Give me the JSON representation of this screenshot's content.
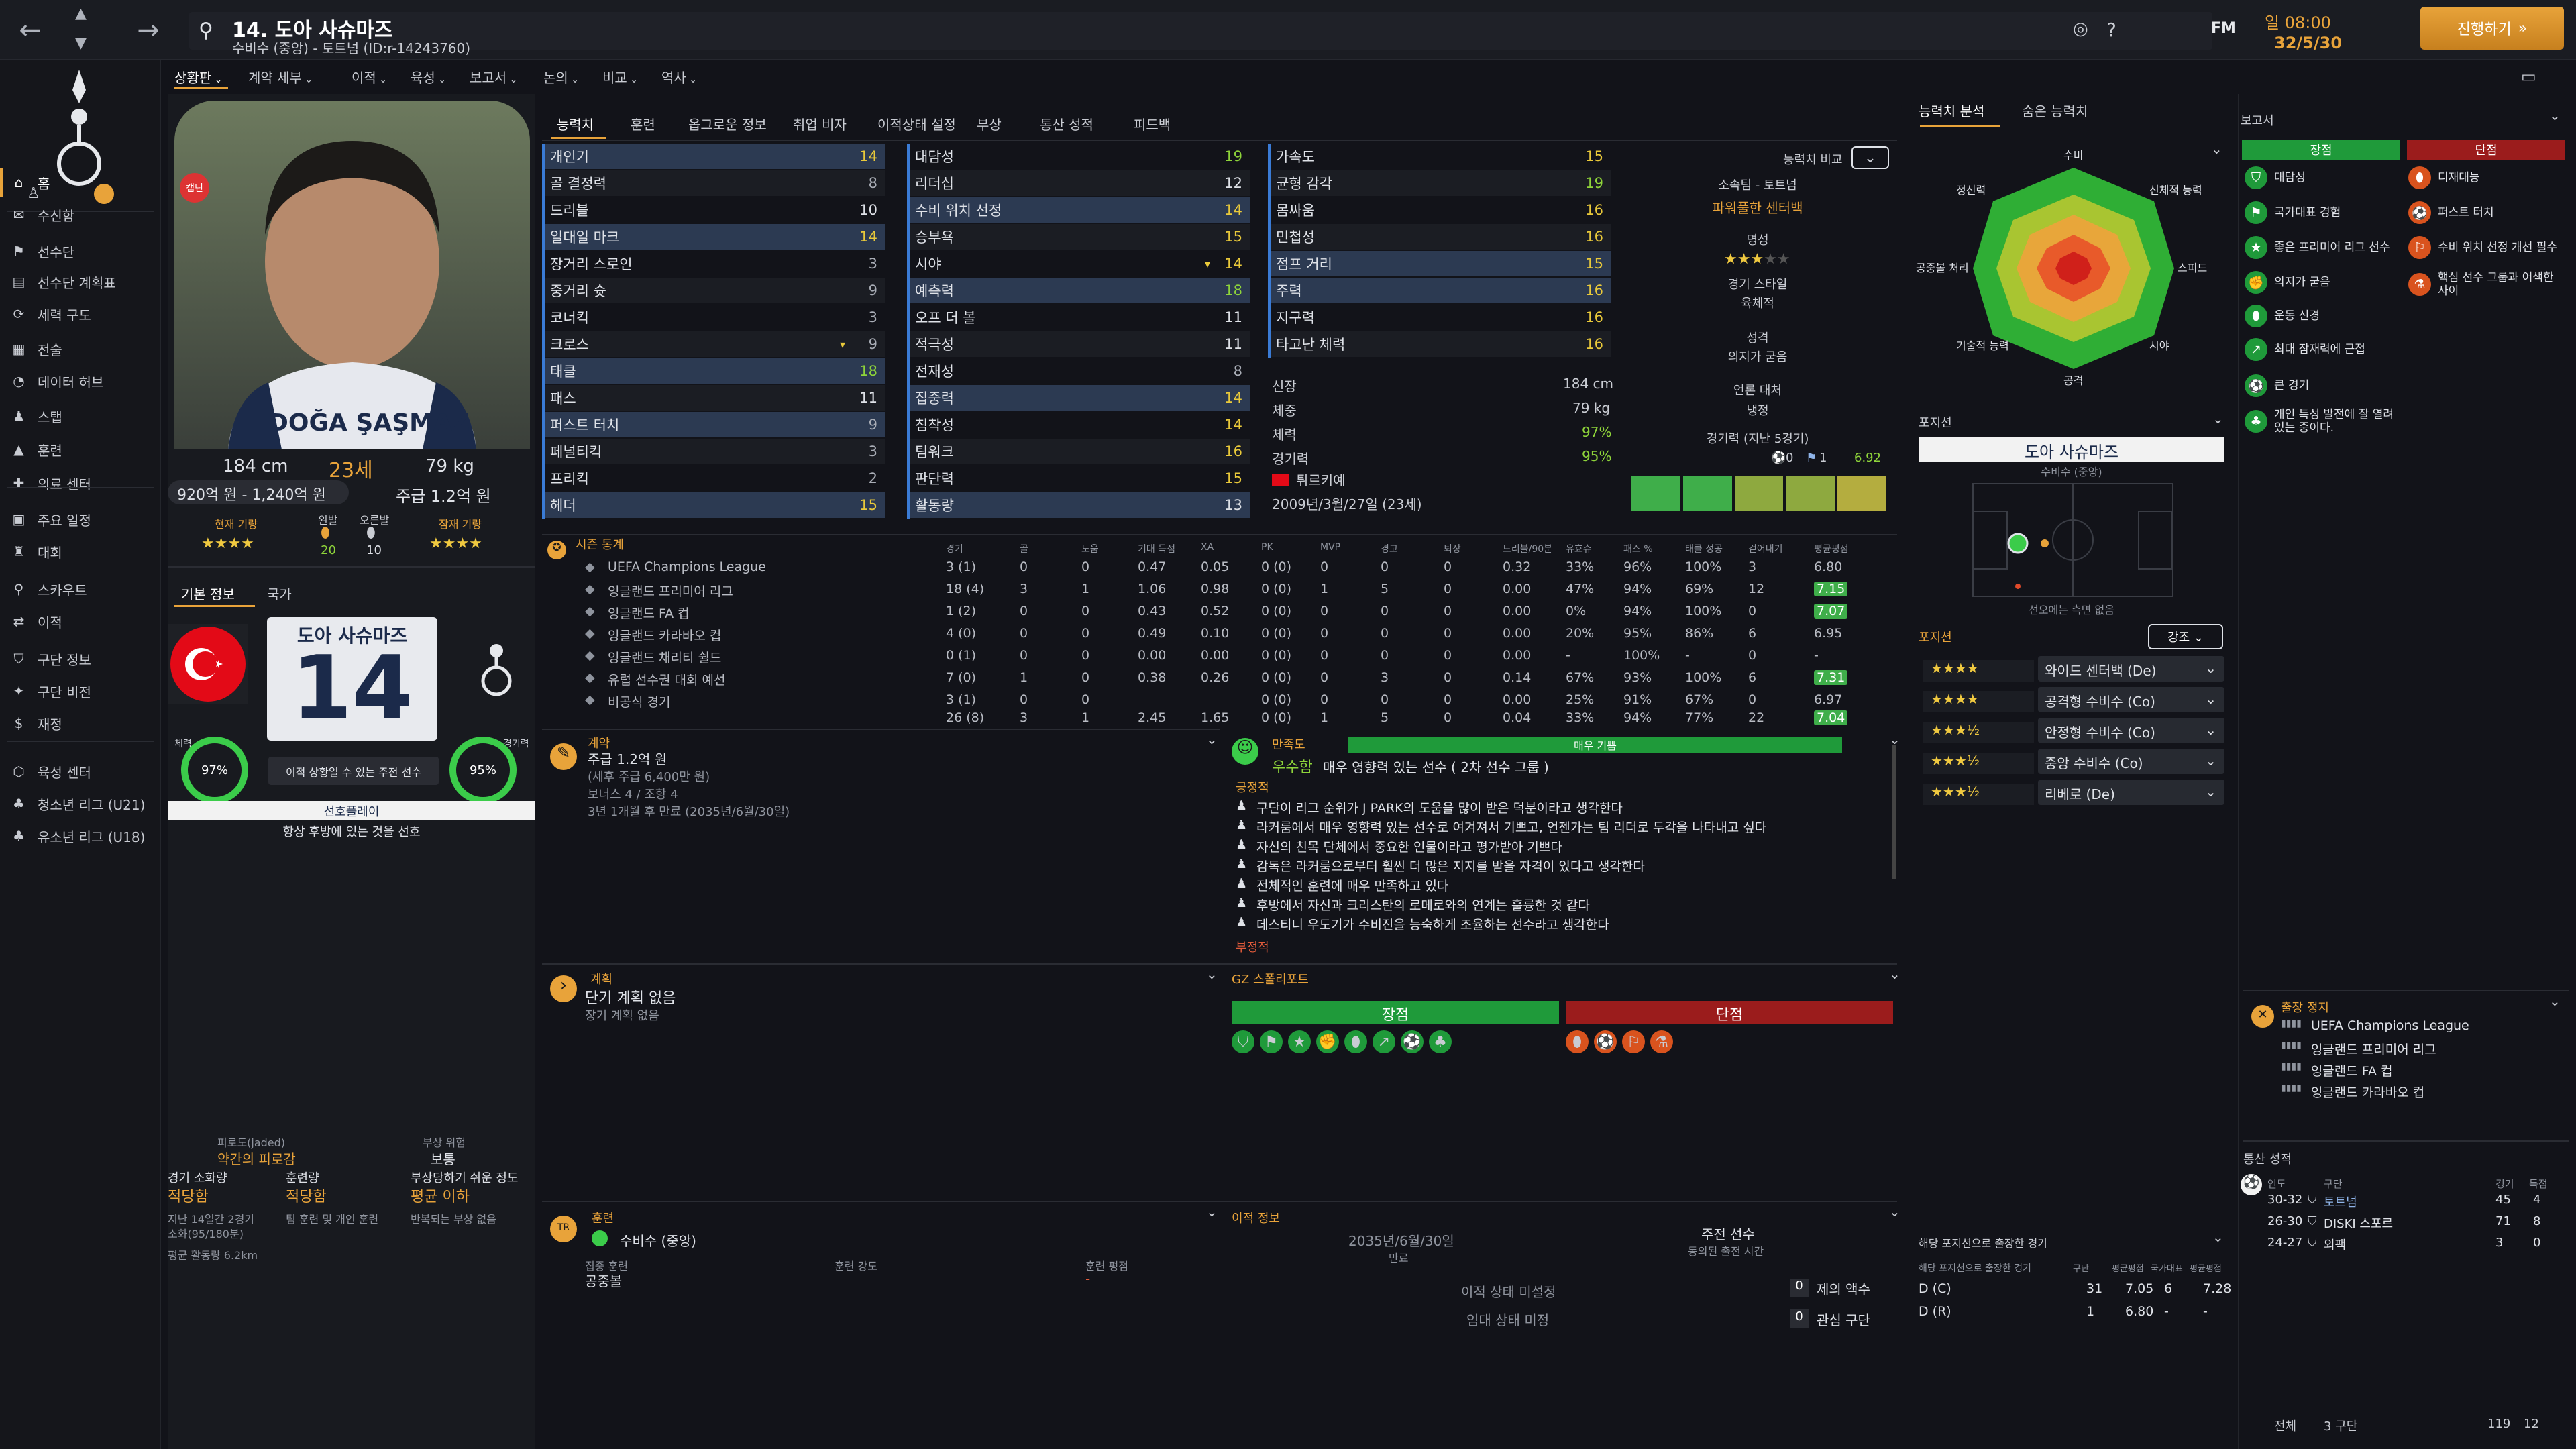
{
  "topbar": {
    "title": "14. 도아 사슈마즈",
    "subtitle": "수비수 (중앙) - 토트넘 (ID:r-14243760)",
    "date_line1": "일 08:00",
    "date_line2": "32/5/30",
    "continue_label": "진행하기",
    "fm_label": "FM"
  },
  "sidebar": {
    "items": [
      {
        "label": "홈",
        "icon": "home-icon"
      },
      {
        "label": "수신함",
        "icon": "inbox-icon"
      },
      {
        "label": "선수단",
        "icon": "squad-icon"
      },
      {
        "label": "선수단 계획표",
        "icon": "plan-icon"
      },
      {
        "label": "세력 구도",
        "icon": "dynamics-icon"
      },
      {
        "label": "전술",
        "icon": "tactics-icon"
      },
      {
        "label": "데이터 허브",
        "icon": "data-icon"
      },
      {
        "label": "스탭",
        "icon": "staff-icon"
      },
      {
        "label": "훈련",
        "icon": "training-icon"
      },
      {
        "label": "의료 센터",
        "icon": "medical-icon"
      },
      {
        "label": "주요 일정",
        "icon": "calendar-icon"
      },
      {
        "label": "대회",
        "icon": "trophy-icon"
      },
      {
        "label": "스카우트",
        "icon": "scout-icon"
      },
      {
        "label": "이적",
        "icon": "transfer-icon"
      },
      {
        "label": "구단 정보",
        "icon": "club-icon"
      },
      {
        "label": "구단 비전",
        "icon": "vision-icon"
      },
      {
        "label": "재정",
        "icon": "finance-icon"
      },
      {
        "label": "육성 센터",
        "icon": "youth-icon"
      },
      {
        "label": "청소년 리그 (U21)",
        "icon": "u21-icon"
      },
      {
        "label": "유소년 리그 (U18)",
        "icon": "u18-icon"
      }
    ]
  },
  "subnav": [
    "상황판",
    "계약 세부",
    "이적",
    "육성",
    "보고서",
    "논의",
    "비교",
    "역사"
  ],
  "player": {
    "name_card": "DOĞA ŞAŞMAZ",
    "height": "184 cm",
    "age": "23세",
    "weight": "79 kg",
    "value": "920억 원 - 1,240억 원",
    "wage": "주급 1.2억 원",
    "current_ability_label": "현재 기량",
    "potential_label": "잠재 기량",
    "left_foot_label": "왼발",
    "right_foot_label": "오른발",
    "left_foot": "20",
    "right_foot": "10",
    "tab_basic": "기본 정보",
    "tab_nation": "국가",
    "korean_name": "도아 사슈마즈",
    "number": "14",
    "fitness_label": "체력",
    "fitness": "97%",
    "match_label": "경기력",
    "match": "95%",
    "role_status": "이적 상황일 수 있는 주전 선수",
    "style_label": "선호플레이",
    "style_desc": "항상 후방에 있는 것을 선호",
    "captain_badge": "캡틴"
  },
  "condition": {
    "injury_risk_header": "피로도(jaded)",
    "injury_risk_value": "약간의 피로감",
    "risk_label": "부상 위험",
    "risk_value": "보통",
    "match_load_label": "경기 소화량",
    "match_load_value": "적당함",
    "training_load_label": "훈련량",
    "training_load_value": "적당함",
    "susceptibility_label": "부상당하기 쉬운 정도",
    "susceptibility_value": "평균 이하",
    "load_note1": "지난 14일간 2경기",
    "load_note2": "소화(95/180분)",
    "load_note3": "팀 훈련 및 개인 훈련",
    "load_note4": "반복되는 부상 없음",
    "distance": "평균 활동량 6.2km"
  },
  "tabs": [
    "능력치",
    "훈련",
    "옵그로운 정보",
    "취업 비자",
    "이적상태 설정",
    "부상",
    "통산 성적",
    "피드백"
  ],
  "attributes": {
    "technical": [
      {
        "name": "개인기",
        "value": "14"
      },
      {
        "name": "골 결정력",
        "value": "8"
      },
      {
        "name": "드리블",
        "value": "10"
      },
      {
        "name": "일대일 마크",
        "value": "14"
      },
      {
        "name": "장거리 스로인",
        "value": "3"
      },
      {
        "name": "중거리 슛",
        "value": "9"
      },
      {
        "name": "코너킥",
        "value": "3"
      },
      {
        "name": "크로스",
        "value": "9"
      },
      {
        "name": "태클",
        "value": "18"
      },
      {
        "name": "패스",
        "value": "11"
      },
      {
        "name": "퍼스트 터치",
        "value": "9"
      },
      {
        "name": "페널티킥",
        "value": "3"
      },
      {
        "name": "프리킥",
        "value": "2"
      },
      {
        "name": "헤더",
        "value": "15"
      }
    ],
    "mental": [
      {
        "name": "대담성",
        "value": "19"
      },
      {
        "name": "리더십",
        "value": "12"
      },
      {
        "name": "수비 위치 선정",
        "value": "14"
      },
      {
        "name": "승부욕",
        "value": "15"
      },
      {
        "name": "시야",
        "value": "14"
      },
      {
        "name": "예측력",
        "value": "18"
      },
      {
        "name": "오프 더 볼",
        "value": "11"
      },
      {
        "name": "적극성",
        "value": "11"
      },
      {
        "name": "전재성",
        "value": "8"
      },
      {
        "name": "집중력",
        "value": "14"
      },
      {
        "name": "침착성",
        "value": "14"
      },
      {
        "name": "팀워크",
        "value": "16"
      },
      {
        "name": "판단력",
        "value": "15"
      },
      {
        "name": "활동량",
        "value": "13"
      }
    ],
    "physical": [
      {
        "name": "가속도",
        "value": "15"
      },
      {
        "name": "균형 감각",
        "value": "19"
      },
      {
        "name": "몸싸움",
        "value": "16"
      },
      {
        "name": "민첩성",
        "value": "16"
      },
      {
        "name": "점프 거리",
        "value": "15"
      },
      {
        "name": "주력",
        "value": "16"
      },
      {
        "name": "지구력",
        "value": "16"
      },
      {
        "name": "타고난 체력",
        "value": "16"
      }
    ]
  },
  "bio": {
    "height_label": "신장",
    "height": "184 cm",
    "weight_label": "체중",
    "weight": "79 kg",
    "fitness_label": "체력",
    "fitness": "97%",
    "match_label": "경기력",
    "match": "95%",
    "nation": "튀르키예",
    "dob": "2009년/3월/27일 (23세)",
    "compare_label": "능력치 비교",
    "club_line": "소속팀 - 토트넘",
    "role_name": "파워풀한 센터백",
    "rep_label": "명성",
    "playstyle_label": "경기 스타일",
    "playstyle": "육체적",
    "personality_label": "성격",
    "personality": "의지가 굳음",
    "media_label": "언론 대처",
    "media": "냉정",
    "form_label": "경기력 (지난 5경기)",
    "goals": "0",
    "assists": "1",
    "rating": "6.92"
  },
  "stats": {
    "header": "시즌 통계",
    "columns": [
      "경기",
      "골",
      "도움",
      "기대 득점",
      "XA",
      "PK",
      "MVP",
      "경고",
      "퇴장",
      "드리블/90분",
      "유효슈",
      "패스 %",
      "태클 성공",
      "걷어내기",
      "평균평점"
    ],
    "rows": [
      {
        "comp": "UEFA Champions League",
        "vals": [
          "3 (1)",
          "0",
          "0",
          "0.47",
          "0.05",
          "0 (0)",
          "0",
          "0",
          "0",
          "0.32",
          "33%",
          "96%",
          "100%",
          "3",
          "6.80"
        ]
      },
      {
        "comp": "잉글랜드 프리미어 리그",
        "vals": [
          "18 (4)",
          "3",
          "1",
          "1.06",
          "0.98",
          "0 (0)",
          "1",
          "5",
          "0",
          "0.00",
          "47%",
          "94%",
          "69%",
          "12",
          "7.15"
        ]
      },
      {
        "comp": "잉글랜드 FA 컵",
        "vals": [
          "1 (2)",
          "0",
          "0",
          "0.43",
          "0.52",
          "0 (0)",
          "0",
          "0",
          "0",
          "0.00",
          "0%",
          "94%",
          "100%",
          "0",
          "7.07"
        ]
      },
      {
        "comp": "잉글랜드 카라바오 컵",
        "vals": [
          "4 (0)",
          "0",
          "0",
          "0.49",
          "0.10",
          "0 (0)",
          "0",
          "0",
          "0",
          "0.00",
          "20%",
          "95%",
          "86%",
          "6",
          "6.95"
        ]
      },
      {
        "comp": "잉글랜드 채리티 쉴드",
        "vals": [
          "0 (1)",
          "0",
          "0",
          "0.00",
          "0.00",
          "0 (0)",
          "0",
          "0",
          "0",
          "0.00",
          "-",
          "100%",
          "-",
          "0",
          "-"
        ]
      },
      {
        "comp": "유럽 선수권 대회 예선",
        "vals": [
          "7 (0)",
          "1",
          "0",
          "0.38",
          "0.26",
          "0 (0)",
          "0",
          "3",
          "0",
          "0.14",
          "67%",
          "93%",
          "100%",
          "6",
          "7.31"
        ]
      },
      {
        "comp": "비공식 경기",
        "vals": [
          "3 (1)",
          "0",
          "0",
          "",
          "",
          "0 (0)",
          "0",
          "0",
          "0",
          "0.00",
          "25%",
          "91%",
          "67%",
          "0",
          "6.97"
        ]
      }
    ],
    "totals": [
      "26 (8)",
      "3",
      "1",
      "2.45",
      "1.65",
      "0 (0)",
      "1",
      "5",
      "0",
      "0.04",
      "33%",
      "94%",
      "77%",
      "22",
      "7.04"
    ]
  },
  "contract": {
    "header": "계약",
    "wage": "주급 1.2억 원",
    "wage_note": "(세후 주급 6,400만 원)",
    "bonus": "보너스 4 / 조항 4",
    "expiry": "3년 1개월 후 만료 (2035년/6월/30일)"
  },
  "happiness": {
    "header": "만족도",
    "level": "우수함",
    "desc": "매우 영향력 있는 선수 ( 2차 선수 그룹 )",
    "expectation": "매우 기쁨",
    "positive_label": "긍정적",
    "items": [
      "구단이 리그 순위가 J PARK의 도움을 많이 받은 덕분이라고 생각한다",
      "라커룸에서 매우 영향력 있는 선수로 여겨져서 기쁘고, 언젠가는 팀 리더로 두각을 나타내고 싶다",
      "자신의 친목 단체에서 중요한 인물이라고 평가받아 기쁘다",
      "감독은 라커룸으로부터 훨씬 더 많은 지지를 받을 자격이 있다고 생각한다",
      "전체적인 훈련에 매우 만족하고 있다",
      "후방에서 자신과 크리스탄의 로메로와의 연계는 훌륭한 것 같다",
      "데스티니 우도기가 수비진을 능숙하게 조율하는 선수라고 생각한다"
    ],
    "negative_label": "부정적"
  },
  "plans": {
    "header": "계획",
    "short": "단기 계획 없음",
    "long": "장기 계획 없음"
  },
  "scout_report": {
    "header": "GZ 스폴리포트",
    "pros": "장점",
    "cons": "단점"
  },
  "training": {
    "header": "훈련",
    "role": "수비수 (중앙)",
    "focus_label": "집중 훈련",
    "focus": "공중볼",
    "intensity_label": "훈련 강도",
    "rating_label": "훈련 평점",
    "rating": "-"
  },
  "transfer": {
    "header": "이적 정보",
    "date": "2035년/6월/30일",
    "date_label": "만료",
    "status": "주전 선수",
    "status_sub": "동의된 출전 시간",
    "not_set": "이적 상태 미설정",
    "not_set2": "임대 상태 미정",
    "offers_count": "0",
    "offers_label": "제의 액수",
    "interest_count": "0",
    "interest_label": "관심 구단"
  },
  "analysis": {
    "tab1": "능력치 분석",
    "tab2": "숨은 능력치",
    "labels": [
      "수비",
      "신체적 능력",
      "스피드",
      "시야",
      "공격",
      "기술적 능력",
      "공중볼 처리",
      "정신력"
    ]
  },
  "position": {
    "header": "포지션",
    "name": "도아 사슈마즈",
    "pos": "수비수 (중앙)",
    "note": "선오에는 측면 없음"
  },
  "roles": {
    "header": "포지션",
    "filter": "강조",
    "items": [
      {
        "name": "와이드 센터백 (De)",
        "stars": "★★★★"
      },
      {
        "name": "공격형 수비수 (Co)",
        "stars": "★★★★"
      },
      {
        "name": "안정형 수비수 (Co)",
        "stars": "★★★½"
      },
      {
        "name": "중앙 수비수 (Co)",
        "stars": "★★★½"
      },
      {
        "name": "리베로 (De)",
        "stars": "★★★½"
      }
    ]
  },
  "report": {
    "header": "보고서",
    "pros": "장점",
    "cons": "단점",
    "pros_items": [
      "대담성",
      "국가대표 경험",
      "좋은 프리미어 리그 선수",
      "의지가 굳음",
      "운동 신경",
      "최대 잠재력에 근접",
      "큰 경기",
      "개인 특성 발전에 잘 열려있는 중이다."
    ],
    "cons_items": [
      "디재대능",
      "퍼스트 터치",
      "수비 위치 선정 개선 필수",
      "핵심 선수 그룹과 어색한 사이"
    ]
  },
  "suspension": {
    "header": "출장 정지",
    "items": [
      "UEFA Champions League",
      "잉글랜드 프리미어 리그",
      "잉글랜드 FA 컵",
      "잉글랜드 카라바오 컵"
    ]
  },
  "career": {
    "header": "통산 성적",
    "cols": [
      "연도",
      "구단",
      "경기",
      "득점"
    ],
    "rows": [
      {
        "year": "30-32",
        "club": "토트넘",
        "apps": "45",
        "goals": "4"
      },
      {
        "year": "26-30",
        "club": "DISKI 스포르",
        "apps": "71",
        "goals": "8"
      },
      {
        "year": "24-27",
        "club": "외팩",
        "apps": "3",
        "goals": "0"
      }
    ],
    "total_label": "전체",
    "total_clubs": "3 구단",
    "total_apps": "119",
    "total_goals": "12"
  },
  "pos_games": {
    "header": "해당 포지션으로 출장한 경기",
    "sub": "해당 포지션으로 출장한 경기",
    "cols": [
      "구단",
      "평균평점",
      "국가대표",
      "평균평점"
    ],
    "rows": [
      {
        "pos": "D (C)",
        "a": "31",
        "b": "7.05",
        "c": "6",
        "d": "7.28"
      },
      {
        "pos": "D (R)",
        "a": "1",
        "b": "6.80",
        "c": "-",
        "d": "-"
      }
    ]
  },
  "colors": {
    "accent": "#e8a33a",
    "green": "#1f9a3a",
    "red": "#9b1c1c",
    "bg": "#121319"
  }
}
